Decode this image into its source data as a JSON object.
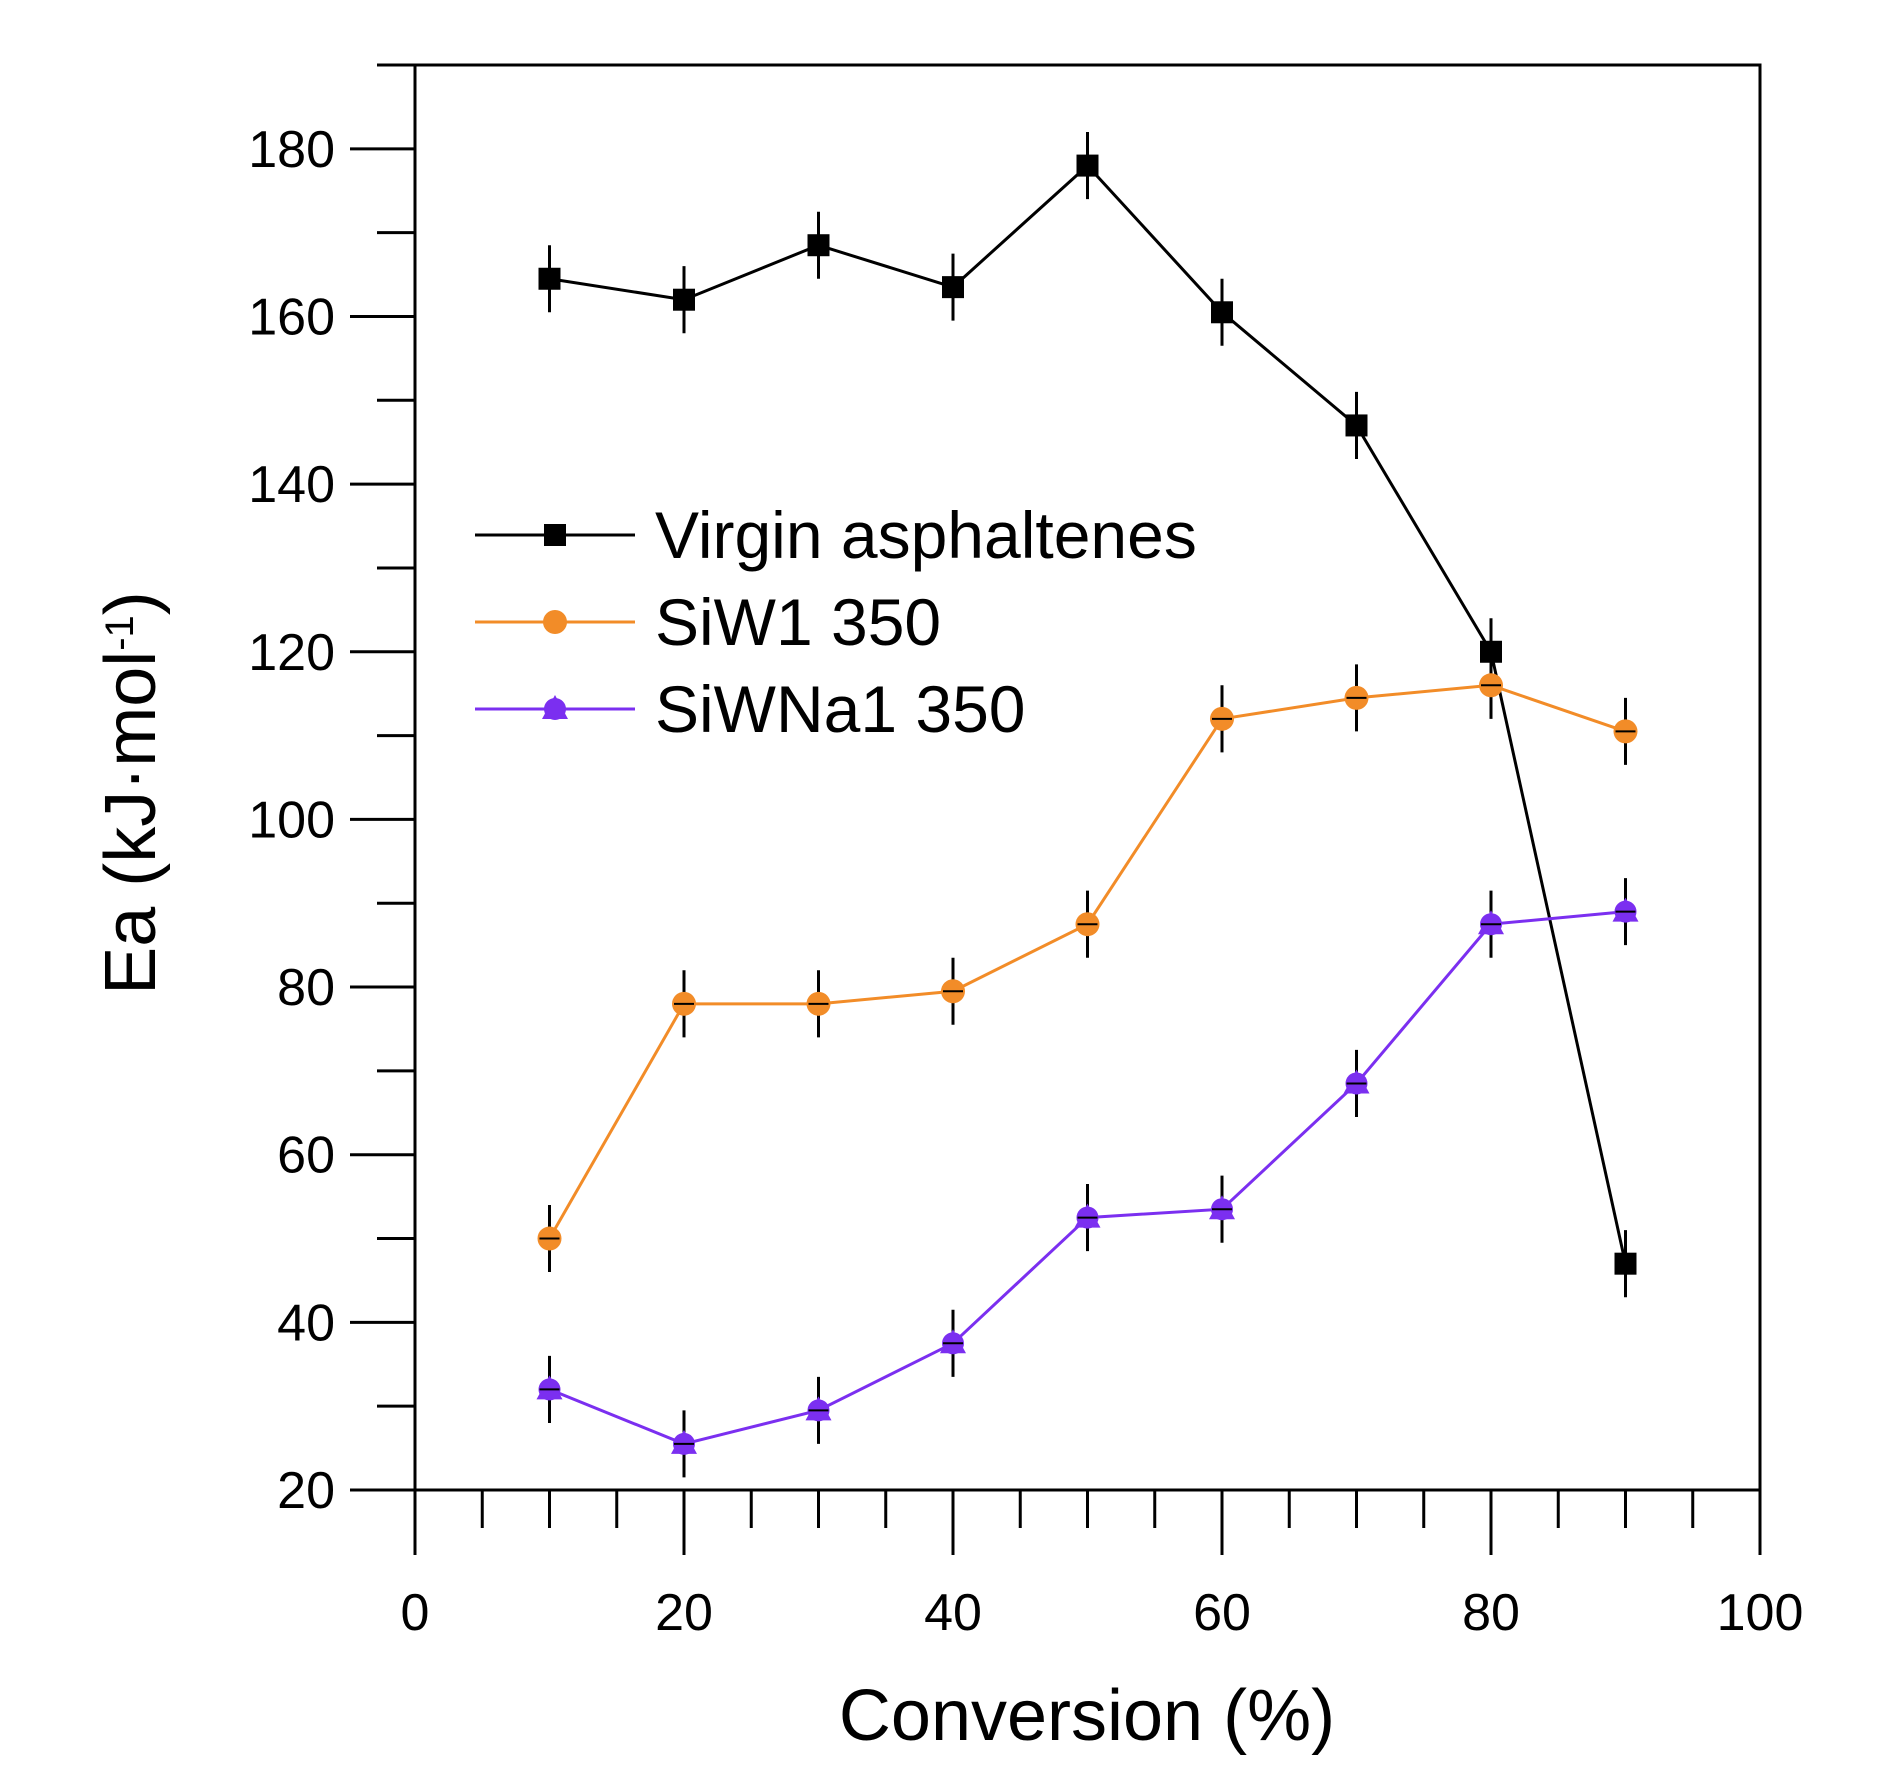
{
  "chart_data": {
    "type": "line",
    "title": "",
    "xlabel": "Conversion (%)",
    "ylabel_base": "Ea (kJ·mol",
    "ylabel_sup": "-1",
    "ylabel_close": ")",
    "xlim": [
      0,
      100
    ],
    "ylim": [
      20,
      190
    ],
    "xticks": [
      "0",
      "20",
      "40",
      "60",
      "80",
      "100"
    ],
    "yticks": [
      "20",
      "40",
      "60",
      "80",
      "100",
      "120",
      "140",
      "160",
      "180"
    ],
    "x": [
      10,
      20,
      30,
      40,
      50,
      60,
      70,
      80,
      90
    ],
    "legend_position": "center-left",
    "series": [
      {
        "name": "Virgin asphaltenes",
        "color": "#000000",
        "marker": "square",
        "values": [
          164.5,
          162,
          168.5,
          163.5,
          178,
          160.5,
          147,
          120,
          47
        ]
      },
      {
        "name": "SiW1 350",
        "color": "#f28c28",
        "marker": "circle",
        "values": [
          50,
          78,
          78,
          79.5,
          87.5,
          112,
          114.5,
          116,
          110.5
        ]
      },
      {
        "name": "SiWNa1 350",
        "color": "#7b2ff0",
        "marker": "triangle",
        "values": [
          32,
          25.5,
          29.5,
          37.5,
          52.5,
          53.5,
          68.5,
          87.5,
          89
        ]
      }
    ],
    "error": 4
  }
}
